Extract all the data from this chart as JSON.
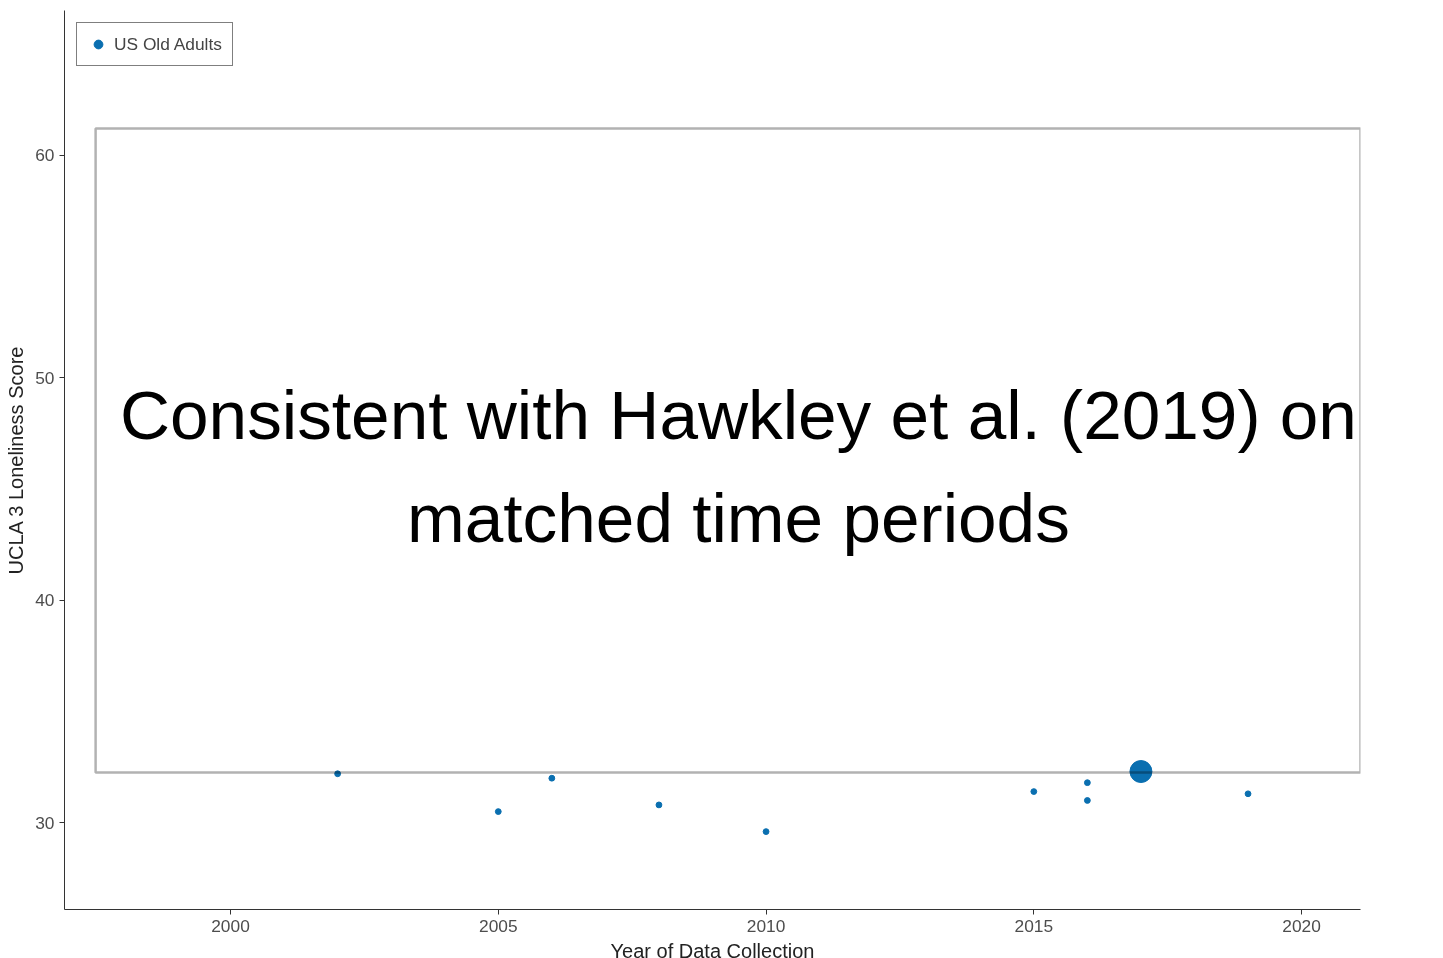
{
  "chart_data": {
    "type": "bubble",
    "xlabel": "Year of Data Collection",
    "ylabel": "UCLA 3 Loneliness Score",
    "annotations": [
      "Consistent with Hawkley et al. (2019) on matched time periods"
    ],
    "series": [
      {
        "name": "US Old Adults",
        "color": "#0a6fb0",
        "x": [
          2002,
          2005,
          2006,
          2008,
          2010,
          2015,
          2016,
          2016,
          2017,
          2019
        ],
        "values": [
          32.2,
          30.5,
          32.0,
          30.8,
          29.6,
          31.4,
          31.8,
          31.0,
          32.3,
          31.3
        ],
        "sizes": [
          0.07,
          0.07,
          0.07,
          0.07,
          0.07,
          0.07,
          0.07,
          0.07,
          1,
          0.07
        ]
      }
    ],
    "xlim": [
      1996.9,
      2021.1
    ],
    "ylim": [
      26.1,
      66.5
    ],
    "xticks": [
      2000,
      2005,
      2010,
      2015,
      2020
    ],
    "yticks": [
      30,
      40,
      50,
      60
    ],
    "grid": false,
    "legend": "top left"
  }
}
